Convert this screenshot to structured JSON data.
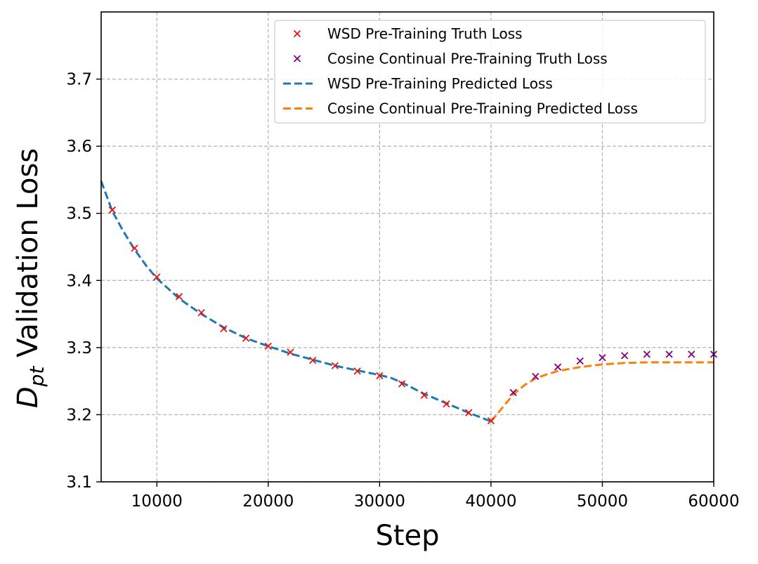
{
  "chart_data": {
    "type": "line",
    "title": "",
    "ylabel_main": "D",
    "ylabel_sub": "pt",
    "ylabel_rest": " Validation Loss",
    "xlabel": "Step",
    "xlim": [
      5000,
      60000
    ],
    "ylim": [
      3.1,
      3.8
    ],
    "xticks": [
      10000,
      20000,
      30000,
      40000,
      50000,
      60000
    ],
    "xtick_labels": [
      "10000",
      "20000",
      "30000",
      "40000",
      "50000",
      "60000"
    ],
    "yticks": [
      3.1,
      3.2,
      3.3,
      3.4,
      3.5,
      3.6,
      3.7
    ],
    "ytick_labels": [
      "3.1",
      "3.2",
      "3.3",
      "3.4",
      "3.5",
      "3.6",
      "3.7"
    ],
    "grid": true,
    "legend_position": "upper-right",
    "colors": {
      "wsd_truth": "#e8140e",
      "cos_truth": "#800080",
      "wsd_pred": "#1f77b4",
      "cos_pred": "#ff7f0e",
      "grid": "#b0b0b0"
    },
    "legend": [
      {
        "key": "wsd_truth",
        "label": "WSD Pre-Training Truth Loss",
        "marker": "x"
      },
      {
        "key": "cos_truth",
        "label": "Cosine Continual Pre-Training Truth Loss",
        "marker": "x"
      },
      {
        "key": "wsd_pred",
        "label": "WSD Pre-Training Predicted Loss",
        "marker": "dashed"
      },
      {
        "key": "cos_pred",
        "label": "Cosine Continual Pre-Training Predicted Loss",
        "marker": "dashed"
      }
    ],
    "series": [
      {
        "key": "wsd_truth",
        "name": "WSD Pre-Training Truth Loss",
        "style": "x",
        "x": [
          6000,
          8000,
          10000,
          12000,
          14000,
          16000,
          18000,
          20000,
          22000,
          24000,
          26000,
          28000,
          30000,
          32000,
          34000,
          36000,
          38000,
          40000
        ],
        "y": [
          3.505,
          3.448,
          3.405,
          3.376,
          3.352,
          3.328,
          3.314,
          3.302,
          3.293,
          3.281,
          3.273,
          3.265,
          3.258,
          3.246,
          3.229,
          3.216,
          3.203,
          3.191
        ]
      },
      {
        "key": "cos_truth",
        "name": "Cosine Continual Pre-Training Truth Loss",
        "style": "x",
        "x": [
          42000,
          44000,
          46000,
          48000,
          50000,
          52000,
          54000,
          56000,
          58000,
          60000
        ],
        "y": [
          3.233,
          3.257,
          3.271,
          3.28,
          3.285,
          3.288,
          3.29,
          3.29,
          3.29,
          3.29
        ]
      },
      {
        "key": "wsd_pred",
        "name": "WSD Pre-Training Predicted Loss",
        "style": "dashed",
        "x": [
          5000,
          6000,
          7000,
          8000,
          9000,
          10000,
          12000,
          14000,
          16000,
          18000,
          20000,
          22000,
          24000,
          26000,
          28000,
          30000,
          31000,
          32000,
          34000,
          36000,
          38000,
          40000
        ],
        "y": [
          3.548,
          3.503,
          3.473,
          3.446,
          3.423,
          3.403,
          3.373,
          3.35,
          3.33,
          3.314,
          3.302,
          3.291,
          3.282,
          3.273,
          3.266,
          3.259,
          3.255,
          3.248,
          3.231,
          3.217,
          3.203,
          3.19
        ]
      },
      {
        "key": "cos_pred",
        "name": "Cosine Continual Pre-Training Predicted Loss",
        "style": "dashed",
        "x": [
          40000,
          41000,
          42000,
          43000,
          44000,
          45000,
          46000,
          47000,
          48000,
          50000,
          52000,
          54000,
          56000,
          58000,
          60000
        ],
        "y": [
          3.19,
          3.21,
          3.23,
          3.244,
          3.254,
          3.26,
          3.265,
          3.268,
          3.271,
          3.275,
          3.277,
          3.278,
          3.278,
          3.278,
          3.278
        ]
      }
    ]
  }
}
